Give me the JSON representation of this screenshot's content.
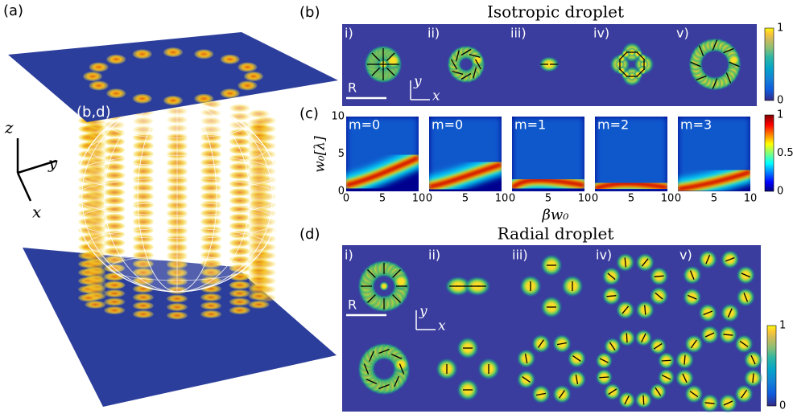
{
  "panel_a": {
    "label": "(a)",
    "plane_label": "(b,d)",
    "axes": {
      "z": "z",
      "y": "y",
      "x": "x"
    }
  },
  "panel_b": {
    "label": "(b)",
    "title": "Isotropic droplet",
    "subpanels": [
      "i)",
      "ii)",
      "iii)",
      "iv)",
      "v)"
    ],
    "scale_label": "R",
    "axes": {
      "y": "y",
      "x": "x"
    },
    "colorbar_ticks": [
      1,
      0
    ]
  },
  "panel_c": {
    "label": "(c)",
    "y_label": "w₀[λ]",
    "x_label": "βw₀",
    "yticks": [
      10,
      5,
      0
    ],
    "xticks": [
      0,
      5,
      10
    ],
    "maps": [
      "m=0",
      "m=0",
      "m=1",
      "m=2",
      "m=3"
    ],
    "colorbar_ticks": [
      1,
      0.5,
      0
    ]
  },
  "panel_d": {
    "label": "(d)",
    "title": "Radial droplet",
    "subpanels": [
      "i)",
      "ii)",
      "iii)",
      "iv)",
      "v)"
    ],
    "scale_label": "R",
    "axes": {
      "y": "y",
      "x": "x"
    },
    "colorbar_ticks": [
      1,
      0
    ]
  }
}
